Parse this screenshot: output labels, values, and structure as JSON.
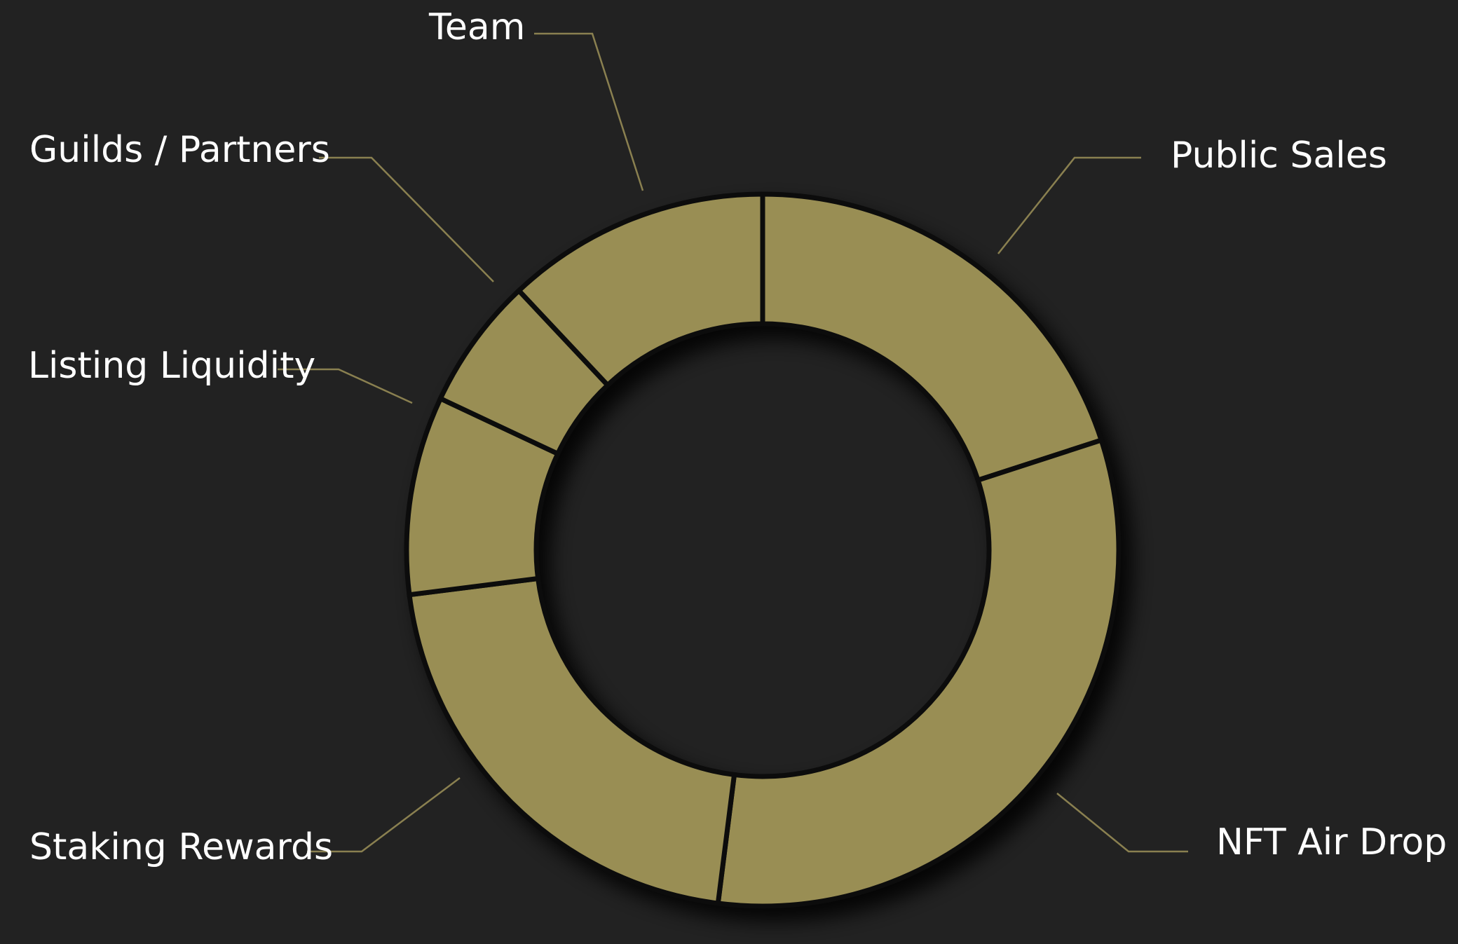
{
  "chart_data": {
    "type": "pie",
    "donut": true,
    "legend": "none",
    "slices": [
      {
        "label": "Public Sales",
        "value": 20
      },
      {
        "label": "NFT Air Drop",
        "value": 32
      },
      {
        "label": "Staking Rewards",
        "value": 21
      },
      {
        "label": "Listing Liquidity",
        "value": 9
      },
      {
        "label": "Guilds / Partners",
        "value": 6
      },
      {
        "label": "Team",
        "value": 12
      }
    ],
    "colors": {
      "background": "#222222",
      "slice": "#998e54",
      "separator": "#0c0c0c",
      "leader_line": "#8a8050",
      "label": "#ffffff"
    }
  }
}
